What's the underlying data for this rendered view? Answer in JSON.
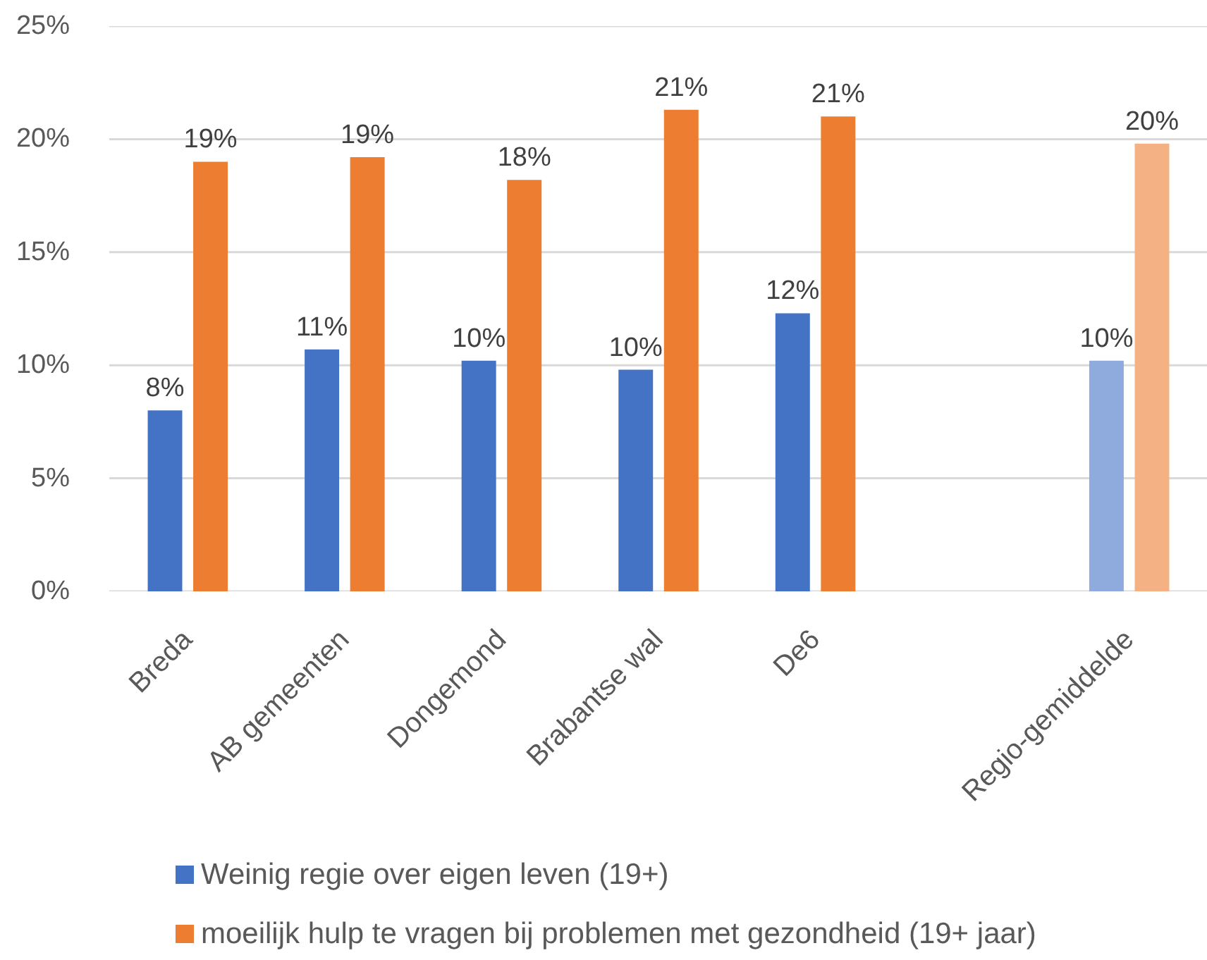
{
  "chart_data": {
    "type": "bar",
    "categories": [
      "Breda",
      "AB gemeenten",
      "Dongemond",
      "Brabantse wal",
      "De6",
      null,
      "Regio-gemiddelde"
    ],
    "series": [
      {
        "name": "Weinig regie over eigen leven (19+)",
        "color": "#4472c4",
        "colors": [
          "#4472c4",
          "#4472c4",
          "#4472c4",
          "#4472c4",
          "#4472c4",
          null,
          "#8faadc"
        ],
        "values": [
          8.0,
          10.7,
          10.2,
          9.8,
          12.3,
          null,
          10.2
        ],
        "value_labels": [
          "8%",
          "11%",
          "10%",
          "10%",
          "12%",
          null,
          "10%"
        ]
      },
      {
        "name": "moeilijk hulp te vragen bij problemen met gezondheid  (19+ jaar)",
        "color": "#ed7d31",
        "colors": [
          "#ed7d31",
          "#ed7d31",
          "#ed7d31",
          "#ed7d31",
          "#ed7d31",
          null,
          "#f4b183"
        ],
        "values": [
          19.0,
          19.2,
          18.2,
          21.3,
          21.0,
          null,
          19.8
        ],
        "value_labels": [
          "19%",
          "19%",
          "18%",
          "21%",
          "21%",
          null,
          "20%"
        ]
      }
    ],
    "ylim": [
      0,
      25
    ],
    "yticks": [
      {
        "value": 0,
        "label": "0%"
      },
      {
        "value": 5,
        "label": "5%"
      },
      {
        "value": 10,
        "label": "10%"
      },
      {
        "value": 15,
        "label": "15%"
      },
      {
        "value": 20,
        "label": "20%"
      },
      {
        "value": 25,
        "label": "25%"
      }
    ],
    "grid": "y",
    "legend": "bottom"
  }
}
